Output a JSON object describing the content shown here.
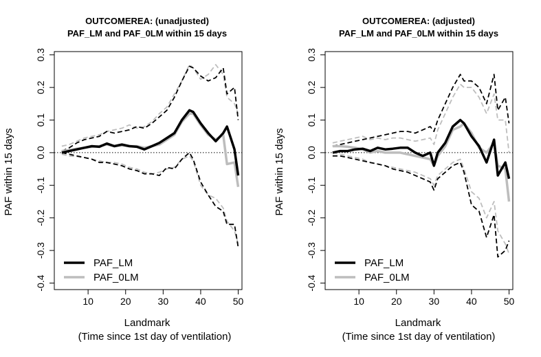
{
  "chart_data": [
    {
      "type": "line",
      "title": "OUTCOMEREA: (unadjusted)",
      "subtitle": "PAF_LM and PAF_0LM within 15 days",
      "xlabel": "Landmark",
      "xlabel2": "(Time since 1st day of ventilation)",
      "ylabel": "PAF within 15 days",
      "xlim": [
        1,
        51
      ],
      "ylim": [
        -0.42,
        0.31
      ],
      "xticks": [
        10,
        20,
        30,
        40,
        50
      ],
      "xtick_labels": [
        "10",
        "20",
        "30",
        "40",
        "50"
      ],
      "yticks": [
        -0.4,
        -0.3,
        -0.2,
        -0.1,
        0.0,
        0.1,
        0.2,
        0.3
      ],
      "ytick_labels": [
        "-0.4",
        "-0.3",
        "-0.2",
        "-0.1",
        "0.0",
        "0.1",
        "0.2",
        "0.3"
      ],
      "reference_line": 0,
      "legend_position": "bottom-left",
      "legend": [
        {
          "label": "PAF_LM",
          "color": "#000000"
        },
        {
          "label": "PAF_0LM",
          "color": "#bdbdbd"
        }
      ],
      "x": [
        3,
        5,
        7,
        9,
        11,
        13,
        15,
        17,
        19,
        21,
        23,
        25,
        27,
        29,
        31,
        33,
        35,
        37,
        38,
        40,
        42,
        44,
        46,
        47,
        49,
        50
      ],
      "series": [
        {
          "name": "PAF_LM",
          "role": "estimate",
          "color": "#000000",
          "dash": "solid",
          "values": [
            0,
            0.005,
            0.01,
            0.015,
            0.02,
            0.018,
            0.028,
            0.02,
            0.025,
            0.02,
            0.018,
            0.01,
            0.02,
            0.03,
            0.045,
            0.06,
            0.1,
            0.13,
            0.125,
            0.09,
            0.06,
            0.035,
            0.06,
            0.08,
            0.01,
            -0.07
          ]
        },
        {
          "name": "PAF_0LM",
          "role": "estimate",
          "color": "#bdbdbd",
          "dash": "solid",
          "values": [
            0.005,
            0.008,
            0.012,
            0.015,
            0.018,
            0.02,
            0.025,
            0.02,
            0.022,
            0.02,
            0.02,
            0.015,
            0.02,
            0.025,
            0.04,
            0.055,
            0.095,
            0.12,
            0.12,
            0.085,
            0.055,
            0.04,
            0.055,
            -0.035,
            -0.03,
            -0.105
          ]
        },
        {
          "name": "PAF_LM upper",
          "role": "ci",
          "color": "#000000",
          "dash": "dashed",
          "values": [
            0.005,
            0.015,
            0.03,
            0.04,
            0.045,
            0.05,
            0.065,
            0.06,
            0.065,
            0.07,
            0.08,
            0.075,
            0.09,
            0.11,
            0.13,
            0.17,
            0.22,
            0.265,
            0.26,
            0.235,
            0.22,
            0.23,
            0.26,
            0.18,
            0.2,
            0.1
          ]
        },
        {
          "name": "PAF_0LM upper",
          "role": "ci",
          "color": "#bdbdbd",
          "dash": "dashed",
          "values": [
            0.02,
            0.025,
            0.035,
            0.045,
            0.05,
            0.055,
            0.065,
            0.07,
            0.075,
            0.085,
            0.075,
            0.08,
            0.095,
            0.12,
            0.14,
            0.18,
            0.22,
            0.27,
            0.26,
            0.225,
            0.24,
            0.27,
            0.24,
            0.17,
            0.15,
            0.12
          ]
        },
        {
          "name": "PAF_LM lower",
          "role": "ci",
          "color": "#000000",
          "dash": "dashed",
          "values": [
            0,
            -0.005,
            -0.01,
            -0.015,
            -0.02,
            -0.03,
            -0.03,
            -0.035,
            -0.04,
            -0.05,
            -0.055,
            -0.065,
            -0.065,
            -0.07,
            -0.045,
            -0.05,
            -0.02,
            0,
            -0.02,
            -0.09,
            -0.13,
            -0.165,
            -0.18,
            -0.22,
            -0.22,
            -0.29
          ]
        },
        {
          "name": "PAF_0LM lower",
          "role": "ci",
          "color": "#bdbdbd",
          "dash": "dashed",
          "values": [
            -0.005,
            -0.01,
            -0.012,
            -0.015,
            -0.02,
            -0.025,
            -0.03,
            -0.03,
            -0.035,
            -0.045,
            -0.05,
            -0.06,
            -0.065,
            -0.06,
            -0.05,
            -0.045,
            -0.02,
            -0.01,
            -0.025,
            -0.1,
            -0.13,
            -0.14,
            -0.17,
            -0.21,
            -0.24,
            -0.28
          ]
        }
      ]
    },
    {
      "type": "line",
      "title": "OUTCOMEREA: (adjusted)",
      "subtitle": "PAF_LM and PAF_0LM within 15 days",
      "xlabel": "Landmark",
      "xlabel2": "(Time since 1st day of ventilation)",
      "ylabel": "PAF within 15 days",
      "xlim": [
        1,
        51
      ],
      "ylim": [
        -0.42,
        0.31
      ],
      "xticks": [
        10,
        20,
        30,
        40,
        50
      ],
      "xtick_labels": [
        "10",
        "20",
        "30",
        "40",
        "50"
      ],
      "yticks": [
        -0.4,
        -0.3,
        -0.2,
        -0.1,
        0.0,
        0.1,
        0.2,
        0.3
      ],
      "ytick_labels": [
        "-0.4",
        "-0.3",
        "-0.2",
        "-0.1",
        "0.0",
        "0.1",
        "0.2",
        "0.3"
      ],
      "reference_line": 0,
      "legend_position": "bottom-left",
      "legend": [
        {
          "label": "PAF_LM",
          "color": "#000000"
        },
        {
          "label": "PAF_0LM",
          "color": "#bdbdbd"
        }
      ],
      "x": [
        3,
        5,
        7,
        9,
        11,
        13,
        15,
        17,
        19,
        21,
        23,
        25,
        27,
        29,
        30,
        31,
        33,
        35,
        37,
        38,
        40,
        42,
        44,
        46,
        47,
        49,
        50
      ],
      "series": [
        {
          "name": "PAF_LM",
          "role": "estimate",
          "color": "#000000",
          "dash": "solid",
          "values": [
            0,
            0.005,
            0.005,
            0.01,
            0.012,
            0.005,
            0.015,
            0.01,
            0.012,
            0.015,
            0.015,
            0.0,
            -0.01,
            0.0,
            -0.04,
            0.0,
            0.03,
            0.08,
            0.1,
            0.09,
            0.05,
            0.02,
            -0.03,
            0.04,
            -0.07,
            -0.03,
            -0.08
          ]
        },
        {
          "name": "PAF_0LM",
          "role": "estimate",
          "color": "#bdbdbd",
          "dash": "solid",
          "values": [
            0.02,
            0.02,
            0.018,
            0.015,
            0.01,
            0.0,
            0.005,
            0.0,
            0.0,
            0.0,
            -0.005,
            -0.01,
            -0.015,
            -0.02,
            -0.04,
            -0.01,
            0.02,
            0.07,
            0.08,
            0.09,
            0.06,
            0.015,
            0.0,
            0.03,
            -0.04,
            -0.05,
            -0.15
          ]
        },
        {
          "name": "PAF_LM upper",
          "role": "ci",
          "color": "#000000",
          "dash": "dashed",
          "values": [
            0.02,
            0.025,
            0.03,
            0.035,
            0.04,
            0.045,
            0.05,
            0.055,
            0.06,
            0.065,
            0.065,
            0.06,
            0.07,
            0.08,
            0.065,
            0.1,
            0.15,
            0.2,
            0.24,
            0.22,
            0.22,
            0.2,
            0.15,
            0.24,
            0.13,
            0.17,
            0.09
          ]
        },
        {
          "name": "PAF_0LM upper",
          "role": "ci",
          "color": "#bdbdbd",
          "dash": "dashed",
          "values": [
            0.03,
            0.035,
            0.04,
            0.045,
            0.05,
            0.04,
            0.045,
            0.04,
            0.045,
            0.045,
            0.04,
            0.035,
            0.04,
            0.045,
            0.025,
            0.07,
            0.12,
            0.17,
            0.21,
            0.2,
            0.2,
            0.17,
            0.12,
            0.18,
            0.1,
            0.1,
            0.0
          ]
        },
        {
          "name": "PAF_LM lower",
          "role": "ci",
          "color": "#000000",
          "dash": "dashed",
          "values": [
            -0.01,
            -0.01,
            -0.015,
            -0.02,
            -0.025,
            -0.03,
            -0.035,
            -0.04,
            -0.05,
            -0.055,
            -0.06,
            -0.07,
            -0.08,
            -0.09,
            -0.115,
            -0.08,
            -0.06,
            -0.04,
            -0.03,
            -0.06,
            -0.16,
            -0.18,
            -0.26,
            -0.19,
            -0.32,
            -0.3,
            -0.27
          ]
        },
        {
          "name": "PAF_0LM lower",
          "role": "ci",
          "color": "#bdbdbd",
          "dash": "dashed",
          "values": [
            0.0,
            -0.005,
            -0.01,
            -0.015,
            -0.02,
            -0.03,
            -0.035,
            -0.04,
            -0.045,
            -0.05,
            -0.055,
            -0.06,
            -0.07,
            -0.08,
            -0.1,
            -0.07,
            -0.05,
            -0.03,
            -0.02,
            -0.05,
            -0.12,
            -0.14,
            -0.2,
            -0.15,
            -0.24,
            -0.28,
            -0.31
          ]
        }
      ]
    }
  ]
}
